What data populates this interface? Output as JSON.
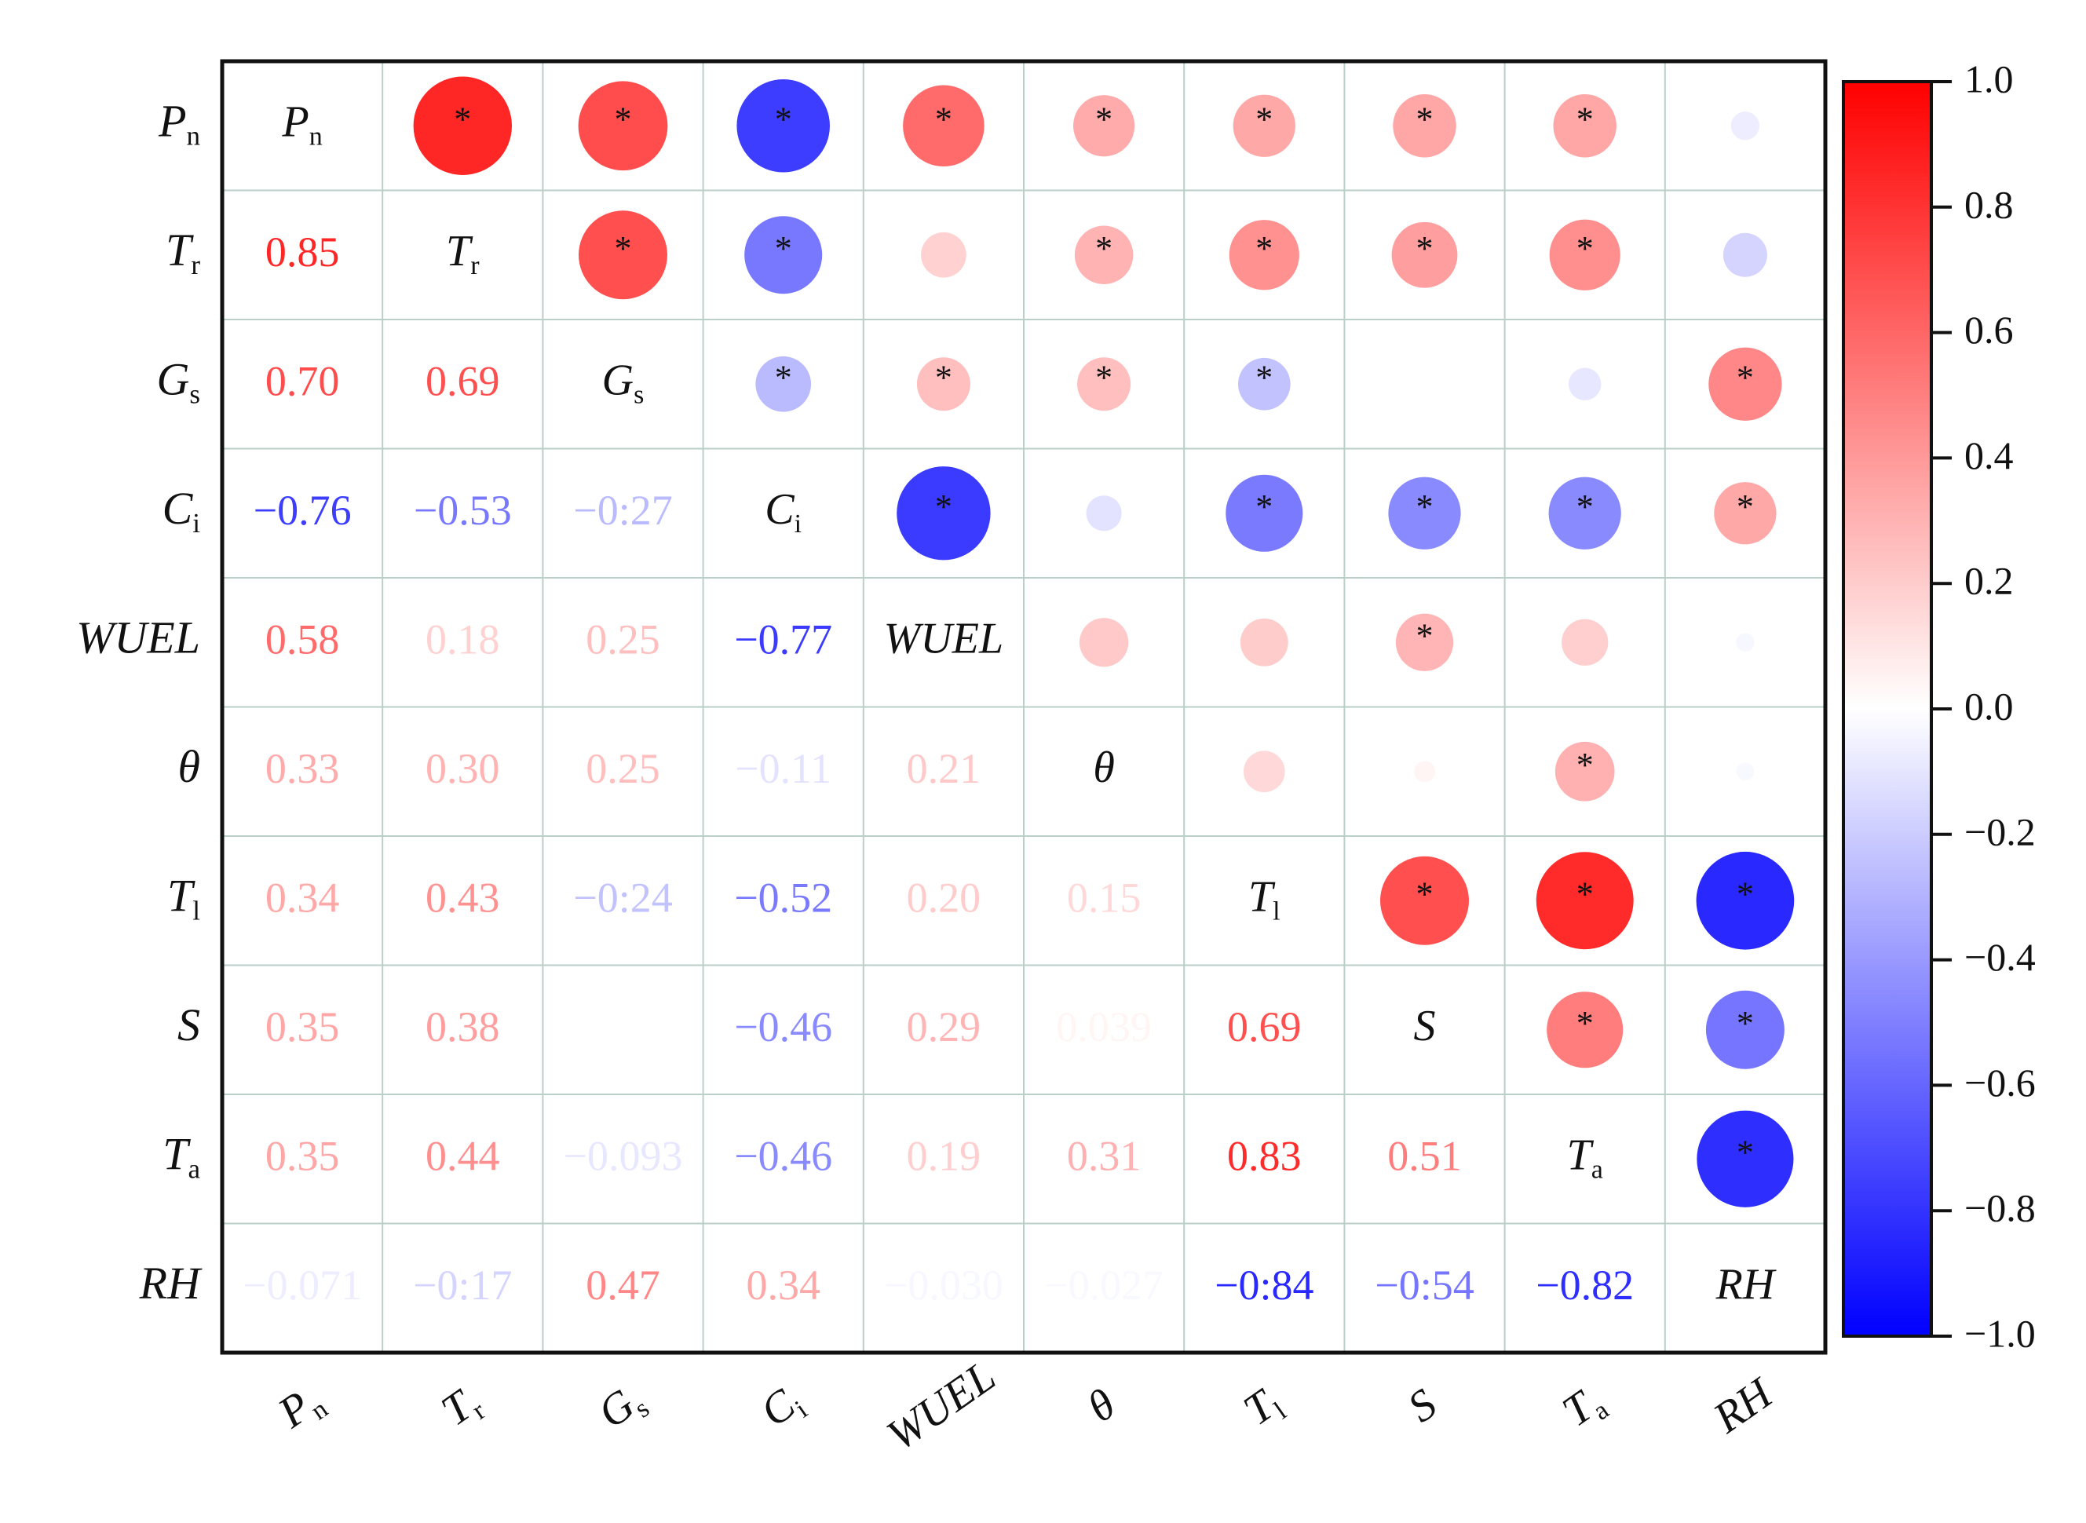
{
  "chart_data": {
    "type": "heatmap",
    "variables": [
      {
        "label": "P",
        "sub": "n",
        "italic": true
      },
      {
        "label": "T",
        "sub": "r",
        "italic": true
      },
      {
        "label": "G",
        "sub": "s",
        "italic": true
      },
      {
        "label": "C",
        "sub": "i",
        "italic": true
      },
      {
        "label": "WUEL",
        "sub": "",
        "italic": false
      },
      {
        "label": "θ",
        "sub": "",
        "italic": true
      },
      {
        "label": "T",
        "sub": "l",
        "italic": true
      },
      {
        "label": "S",
        "sub": "",
        "italic": true
      },
      {
        "label": "T",
        "sub": "a",
        "italic": true
      },
      {
        "label": "RH",
        "sub": "",
        "italic": true
      }
    ],
    "diagonal_labels": [
      {
        "label": "P",
        "sub": "n"
      },
      {
        "label": "T",
        "sub": "r"
      },
      {
        "label": "G",
        "sub": "s"
      },
      {
        "label": "C",
        "sub": "i"
      },
      {
        "label": "WUEL",
        "sub": ""
      },
      {
        "label": "θ",
        "sub": ""
      },
      {
        "label": "T",
        "sub": "l"
      },
      {
        "label": "S",
        "sub": ""
      },
      {
        "label": "T",
        "sub": "a"
      },
      {
        "label": "RH",
        "sub": ""
      }
    ],
    "lower_triangle_text": [
      [
        "",
        "",
        "",
        "",
        "",
        "",
        "",
        "",
        "",
        ""
      ],
      [
        "0.85",
        "",
        "",
        "",
        "",
        "",
        "",
        "",
        "",
        ""
      ],
      [
        "0.70",
        "0.69",
        "",
        "",
        "",
        "",
        "",
        "",
        "",
        ""
      ],
      [
        "−0.76",
        "−0.53",
        "−0:27",
        "",
        "",
        "",
        "",
        "",
        "",
        ""
      ],
      [
        "0.58",
        "0.18",
        "0.25",
        "−0.77",
        "",
        "",
        "",
        "",
        "",
        ""
      ],
      [
        "0.33",
        "0.30",
        "0.25",
        "−0.11",
        "0.21",
        "",
        "",
        "",
        "",
        ""
      ],
      [
        "0.34",
        "0.43",
        "−0:24",
        "−0.52",
        "0.20",
        "0.15",
        "",
        "",
        "",
        ""
      ],
      [
        "0.35",
        "0.38",
        "",
        "−0.46",
        "0.29",
        "0.039",
        "0.69",
        "",
        "",
        ""
      ],
      [
        "0.35",
        "0.44",
        "−0.093",
        "−0.46",
        "0.19",
        "0.31",
        "0.83",
        "0.51",
        "",
        ""
      ],
      [
        "−0.071",
        "−0:17",
        "0.47",
        "0.34",
        "−0.030",
        "−0.027",
        "−0:84",
        "−0:54",
        "−0.82",
        ""
      ]
    ],
    "correlation_matrix": [
      [
        1.0,
        0.85,
        0.7,
        -0.76,
        0.58,
        0.33,
        0.34,
        0.35,
        0.35,
        -0.071
      ],
      [
        0.85,
        1.0,
        0.69,
        -0.53,
        0.18,
        0.3,
        0.43,
        0.38,
        0.44,
        -0.17
      ],
      [
        0.7,
        0.69,
        1.0,
        -0.27,
        0.25,
        0.25,
        -0.24,
        0.0,
        -0.093,
        0.47
      ],
      [
        -0.76,
        -0.53,
        -0.27,
        1.0,
        -0.77,
        -0.11,
        -0.52,
        -0.46,
        -0.46,
        0.34
      ],
      [
        0.58,
        0.18,
        0.25,
        -0.77,
        1.0,
        0.21,
        0.2,
        0.29,
        0.19,
        -0.03
      ],
      [
        0.33,
        0.3,
        0.25,
        -0.11,
        0.21,
        1.0,
        0.15,
        0.039,
        0.31,
        -0.027
      ],
      [
        0.34,
        0.43,
        -0.24,
        -0.52,
        0.2,
        0.15,
        1.0,
        0.69,
        0.83,
        -0.84
      ],
      [
        0.35,
        0.38,
        0.0,
        -0.46,
        0.29,
        0.039,
        0.69,
        1.0,
        0.51,
        -0.54
      ],
      [
        0.35,
        0.44,
        -0.093,
        -0.46,
        0.19,
        0.31,
        0.83,
        0.51,
        1.0,
        -0.82
      ],
      [
        -0.071,
        -0.17,
        0.47,
        0.34,
        -0.03,
        -0.027,
        -0.84,
        -0.54,
        -0.82,
        1.0
      ]
    ],
    "significant_upper": [
      [
        false,
        true,
        true,
        true,
        true,
        true,
        true,
        true,
        true,
        false
      ],
      [
        false,
        false,
        true,
        true,
        false,
        true,
        true,
        true,
        true,
        false
      ],
      [
        false,
        false,
        false,
        true,
        true,
        true,
        true,
        false,
        false,
        true
      ],
      [
        false,
        false,
        false,
        false,
        true,
        false,
        true,
        true,
        true,
        true
      ],
      [
        false,
        false,
        false,
        false,
        false,
        false,
        false,
        true,
        false,
        false
      ],
      [
        false,
        false,
        false,
        false,
        false,
        false,
        false,
        false,
        true,
        false
      ],
      [
        false,
        false,
        false,
        false,
        false,
        false,
        false,
        true,
        true,
        true
      ],
      [
        false,
        false,
        false,
        false,
        false,
        false,
        false,
        false,
        true,
        true
      ],
      [
        false,
        false,
        false,
        false,
        false,
        false,
        false,
        false,
        false,
        true
      ],
      [
        false,
        false,
        false,
        false,
        false,
        false,
        false,
        false,
        false,
        false
      ]
    ],
    "significance_marker": "*",
    "colorbar": {
      "range": [
        -1.0,
        1.0
      ],
      "ticks": [
        1.0,
        0.8,
        0.6,
        0.4,
        0.2,
        0.0,
        -0.2,
        -0.4,
        -0.6,
        -0.8,
        -1.0
      ],
      "tick_labels": [
        "1.0",
        "0.8",
        "0.6",
        "0.4",
        "0.2",
        "0.0",
        "−0.2",
        "−0.4",
        "−0.6",
        "−0.8",
        "−1.0"
      ],
      "colors": {
        "high": "#ff0000",
        "mid": "#ffffff",
        "low": "#0000ff"
      }
    },
    "grid_color": "#b9cfc7",
    "border_color": "#111111"
  }
}
